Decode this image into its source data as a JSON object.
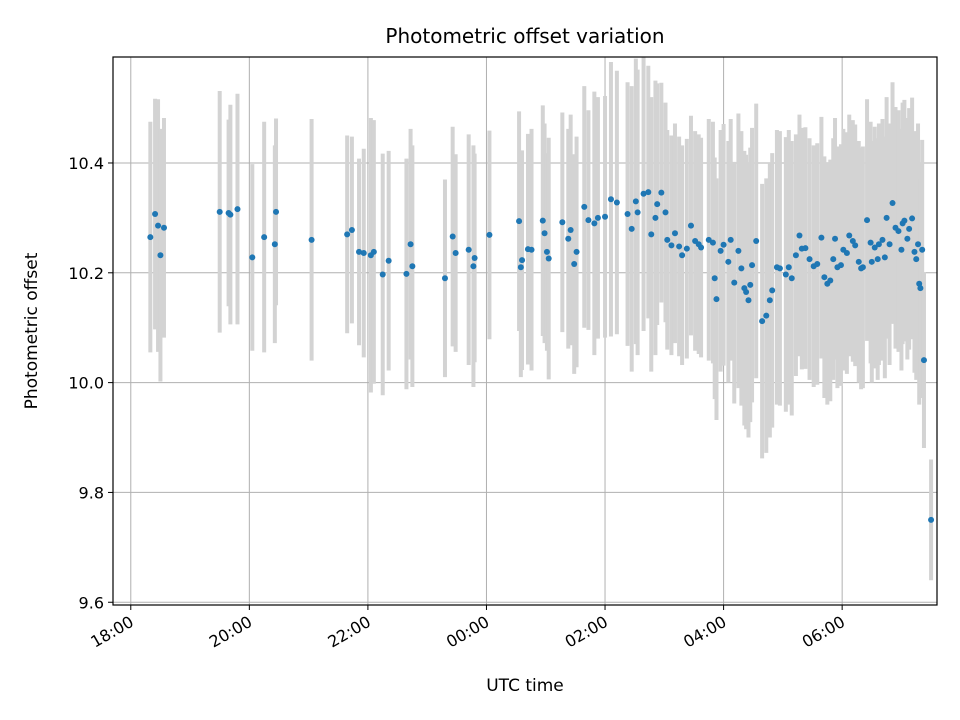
{
  "chart_data": {
    "type": "scatter",
    "title": "Photometric offset variation",
    "xlabel": "UTC time",
    "ylabel": "Photometric offset",
    "x_unit": "hours",
    "xlim": [
      17.7,
      31.6
    ],
    "ylim": [
      9.595,
      10.593
    ],
    "x_ticks": [
      18,
      20,
      22,
      24,
      26,
      28,
      30
    ],
    "x_tick_labels": [
      "18:00",
      "20:00",
      "22:00",
      "00:00",
      "02:00",
      "04:00",
      "06:00"
    ],
    "y_ticks": [
      9.6,
      9.8,
      10.0,
      10.2,
      10.4
    ],
    "y_tick_labels": [
      "9.6",
      "9.8",
      "10.0",
      "10.2",
      "10.4"
    ],
    "grid": true,
    "colors": {
      "point": "#1f77b4",
      "errorbar": "#d3d3d3",
      "grid": "#b0b0b0"
    },
    "series": [
      {
        "points": [
          [
            18.33,
            10.265,
            0.21
          ],
          [
            18.41,
            10.307,
            0.21
          ],
          [
            18.46,
            10.286,
            0.23
          ],
          [
            18.5,
            10.232,
            0.23
          ],
          [
            18.56,
            10.282,
            0.2
          ],
          [
            19.5,
            10.311,
            0.22
          ],
          [
            19.65,
            10.309,
            0.17
          ],
          [
            19.68,
            10.306,
            0.2
          ],
          [
            19.8,
            10.316,
            0.21
          ],
          [
            20.05,
            10.228,
            0.17
          ],
          [
            20.25,
            10.265,
            0.21
          ],
          [
            20.45,
            10.311,
            0.17
          ],
          [
            20.43,
            10.252,
            0.18
          ],
          [
            21.05,
            10.26,
            0.22
          ],
          [
            21.65,
            10.27,
            0.18
          ],
          [
            21.73,
            10.278,
            0.17
          ],
          [
            21.85,
            10.238,
            0.17
          ],
          [
            21.93,
            10.236,
            0.19
          ],
          [
            22.05,
            10.232,
            0.25
          ],
          [
            22.1,
            10.238,
            0.24
          ],
          [
            22.25,
            10.197,
            0.22
          ],
          [
            22.35,
            10.222,
            0.2
          ],
          [
            22.65,
            10.198,
            0.21
          ],
          [
            22.72,
            10.252,
            0.21
          ],
          [
            22.75,
            10.212,
            0.22
          ],
          [
            23.3,
            10.19,
            0.18
          ],
          [
            23.43,
            10.266,
            0.2
          ],
          [
            23.48,
            10.236,
            0.18
          ],
          [
            23.7,
            10.242,
            0.21
          ],
          [
            23.8,
            10.227,
            0.19
          ],
          [
            23.78,
            10.212,
            0.22
          ],
          [
            24.05,
            10.269,
            0.19
          ],
          [
            24.55,
            10.294,
            0.2
          ],
          [
            24.58,
            10.21,
            0.2
          ],
          [
            24.6,
            10.223,
            0.2
          ],
          [
            24.7,
            10.243,
            0.21
          ],
          [
            24.76,
            10.242,
            0.22
          ],
          [
            24.95,
            10.295,
            0.21
          ],
          [
            24.98,
            10.272,
            0.2
          ],
          [
            25.02,
            10.238,
            0.18
          ],
          [
            25.05,
            10.226,
            0.22
          ],
          [
            25.28,
            10.292,
            0.2
          ],
          [
            25.38,
            10.262,
            0.2
          ],
          [
            25.42,
            10.278,
            0.21
          ],
          [
            25.48,
            10.216,
            0.2
          ],
          [
            25.52,
            10.238,
            0.21
          ],
          [
            25.65,
            10.32,
            0.22
          ],
          [
            25.72,
            10.296,
            0.2
          ],
          [
            25.82,
            10.29,
            0.24
          ],
          [
            25.88,
            10.3,
            0.22
          ],
          [
            26.0,
            10.302,
            0.22
          ],
          [
            26.1,
            10.334,
            0.25
          ],
          [
            26.2,
            10.328,
            0.24
          ],
          [
            26.38,
            10.307,
            0.24
          ],
          [
            26.45,
            10.28,
            0.26
          ],
          [
            26.52,
            10.33,
            0.26
          ],
          [
            26.55,
            10.31,
            0.26
          ],
          [
            26.65,
            10.344,
            0.25
          ],
          [
            26.73,
            10.347,
            0.23
          ],
          [
            26.78,
            10.27,
            0.25
          ],
          [
            26.85,
            10.3,
            0.25
          ],
          [
            26.88,
            10.325,
            0.22
          ],
          [
            26.95,
            10.346,
            0.2
          ],
          [
            27.02,
            10.31,
            0.2
          ],
          [
            27.05,
            10.26,
            0.2
          ],
          [
            27.12,
            10.25,
            0.2
          ],
          [
            27.18,
            10.272,
            0.2
          ],
          [
            27.25,
            10.248,
            0.2
          ],
          [
            27.3,
            10.232,
            0.2
          ],
          [
            27.38,
            10.244,
            0.2
          ],
          [
            27.45,
            10.286,
            0.2
          ],
          [
            27.52,
            10.258,
            0.2
          ],
          [
            27.58,
            10.252,
            0.2
          ],
          [
            27.62,
            10.246,
            0.2
          ],
          [
            27.75,
            10.26,
            0.22
          ],
          [
            27.82,
            10.255,
            0.22
          ],
          [
            27.85,
            10.19,
            0.22
          ],
          [
            27.88,
            10.152,
            0.22
          ],
          [
            27.95,
            10.24,
            0.22
          ],
          [
            28.0,
            10.251,
            0.22
          ],
          [
            28.08,
            10.22,
            0.22
          ],
          [
            28.12,
            10.26,
            0.22
          ],
          [
            28.18,
            10.182,
            0.22
          ],
          [
            28.25,
            10.24,
            0.25
          ],
          [
            28.3,
            10.208,
            0.25
          ],
          [
            28.35,
            10.172,
            0.25
          ],
          [
            28.38,
            10.165,
            0.25
          ],
          [
            28.42,
            10.15,
            0.25
          ],
          [
            28.45,
            10.178,
            0.25
          ],
          [
            28.48,
            10.214,
            0.25
          ],
          [
            28.55,
            10.258,
            0.25
          ],
          [
            28.65,
            10.112,
            0.25
          ],
          [
            28.72,
            10.122,
            0.25
          ],
          [
            28.78,
            10.15,
            0.25
          ],
          [
            28.82,
            10.168,
            0.25
          ],
          [
            28.9,
            10.21,
            0.25
          ],
          [
            28.95,
            10.208,
            0.25
          ],
          [
            29.05,
            10.197,
            0.25
          ],
          [
            29.1,
            10.21,
            0.25
          ],
          [
            29.15,
            10.19,
            0.25
          ],
          [
            29.22,
            10.232,
            0.22
          ],
          [
            29.28,
            10.268,
            0.22
          ],
          [
            29.32,
            10.244,
            0.22
          ],
          [
            29.38,
            10.245,
            0.22
          ],
          [
            29.45,
            10.225,
            0.22
          ],
          [
            29.52,
            10.212,
            0.22
          ],
          [
            29.58,
            10.216,
            0.22
          ],
          [
            29.65,
            10.264,
            0.22
          ],
          [
            29.7,
            10.192,
            0.22
          ],
          [
            29.75,
            10.18,
            0.22
          ],
          [
            29.8,
            10.186,
            0.22
          ],
          [
            29.85,
            10.225,
            0.22
          ],
          [
            29.88,
            10.262,
            0.22
          ],
          [
            29.92,
            10.21,
            0.22
          ],
          [
            29.98,
            10.214,
            0.22
          ],
          [
            30.02,
            10.242,
            0.22
          ],
          [
            30.08,
            10.236,
            0.22
          ],
          [
            30.12,
            10.268,
            0.22
          ],
          [
            30.18,
            10.258,
            0.22
          ],
          [
            30.22,
            10.25,
            0.22
          ],
          [
            30.28,
            10.22,
            0.22
          ],
          [
            30.32,
            10.208,
            0.22
          ],
          [
            30.35,
            10.21,
            0.22
          ],
          [
            30.42,
            10.296,
            0.22
          ],
          [
            30.48,
            10.255,
            0.22
          ],
          [
            30.5,
            10.22,
            0.22
          ],
          [
            30.55,
            10.246,
            0.22
          ],
          [
            30.6,
            10.225,
            0.22
          ],
          [
            30.62,
            10.252,
            0.22
          ],
          [
            30.68,
            10.26,
            0.22
          ],
          [
            30.72,
            10.228,
            0.22
          ],
          [
            30.75,
            10.3,
            0.22
          ],
          [
            30.8,
            10.252,
            0.22
          ],
          [
            30.85,
            10.327,
            0.22
          ],
          [
            30.9,
            10.282,
            0.22
          ],
          [
            30.95,
            10.276,
            0.22
          ],
          [
            31.0,
            10.242,
            0.22
          ],
          [
            31.02,
            10.29,
            0.22
          ],
          [
            31.05,
            10.295,
            0.22
          ],
          [
            31.1,
            10.262,
            0.22
          ],
          [
            31.13,
            10.28,
            0.22
          ],
          [
            31.18,
            10.299,
            0.22
          ],
          [
            31.22,
            10.238,
            0.22
          ],
          [
            31.25,
            10.225,
            0.22
          ],
          [
            31.28,
            10.252,
            0.22
          ],
          [
            31.3,
            10.18,
            0.22
          ],
          [
            31.32,
            10.172,
            0.2
          ],
          [
            31.35,
            10.242,
            0.2
          ],
          [
            31.38,
            10.041,
            0.16
          ],
          [
            31.5,
            9.75,
            0.11
          ]
        ]
      }
    ]
  }
}
